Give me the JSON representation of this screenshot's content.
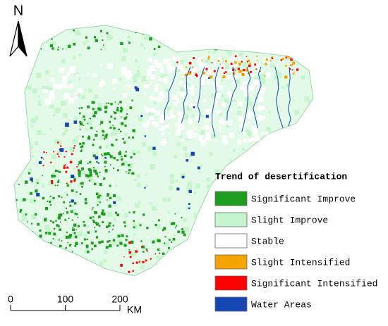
{
  "north_arrow": {
    "label": "N"
  },
  "legend": {
    "title": "Trend of desertification",
    "items": [
      {
        "label": "Significant Improve",
        "color": "#1e9e1e"
      },
      {
        "label": "Slight Improve",
        "color": "#c4f5cc"
      },
      {
        "label": "Stable",
        "color": "#ffffff"
      },
      {
        "label": "Slight Intensified",
        "color": "#f5a300"
      },
      {
        "label": "Significant Intensified",
        "color": "#ff0000"
      },
      {
        "label": "Water Areas",
        "color": "#1446b4"
      }
    ]
  },
  "scale_bar": {
    "ticks": [
      0,
      100,
      200
    ],
    "unit": "KM"
  }
}
